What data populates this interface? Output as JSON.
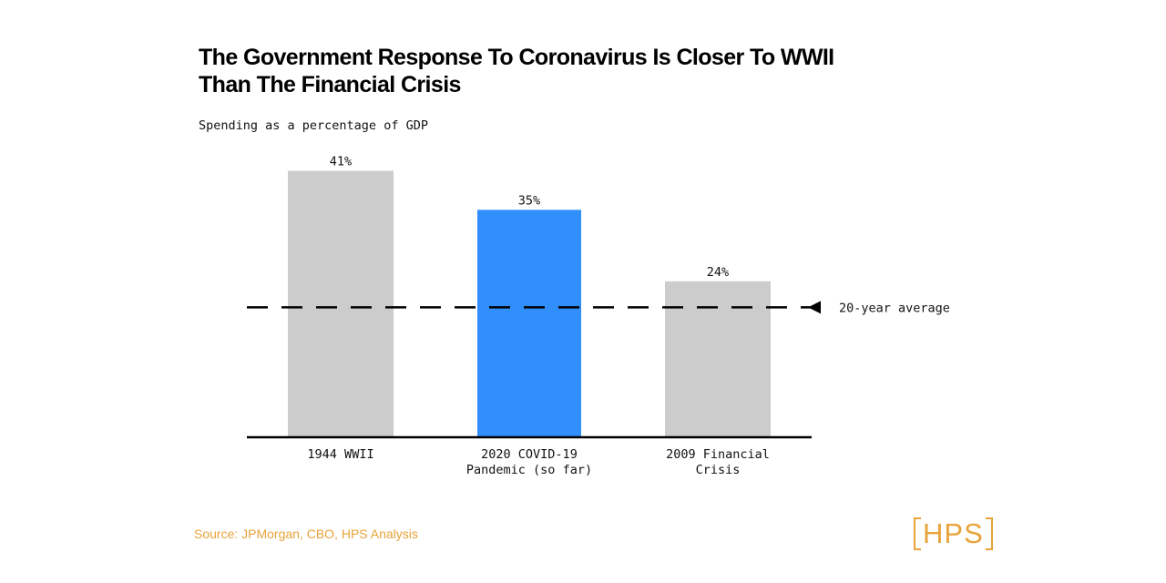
{
  "title": "The Government Response To Coronavirus Is Closer To WWII Than The Financial Crisis",
  "subtitle": "Spending as a percentage of GDP",
  "source": "Source: JPMorgan, CBO, HPS Analysis",
  "logo": {
    "text": "HPS",
    "color": "#e8a33a"
  },
  "chart_data": {
    "type": "bar",
    "categories": [
      [
        "1944 WWII"
      ],
      [
        "2020 COVID-19",
        "Pandemic (so far)"
      ],
      [
        "2009 Financial",
        "Crisis"
      ]
    ],
    "values": [
      41,
      35,
      24
    ],
    "value_labels": [
      "41%",
      "35%",
      "24%"
    ],
    "colors": [
      "#cccccc",
      "#318ffb",
      "#cccccc"
    ],
    "ylim": [
      0,
      45
    ],
    "reference_line": {
      "value": 20,
      "label": "20-year average",
      "style": "dashed",
      "marker": "arrow-left"
    },
    "grid": false,
    "legend": "none",
    "title": "The Government Response To Coronavirus Is Closer To WWII Than The Financial Crisis",
    "xlabel": "",
    "ylabel": "Spending as a percentage of GDP"
  }
}
